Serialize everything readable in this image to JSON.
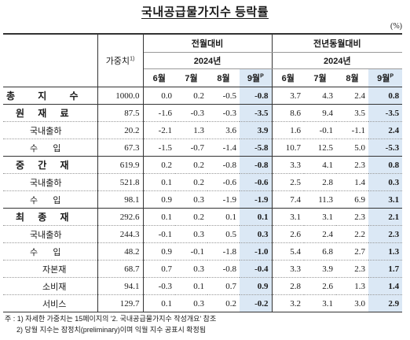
{
  "title": "국내공급물가지수 등락률",
  "unit": "(%)",
  "headers": {
    "weight": "가중치",
    "weight_sup": "1)",
    "mom": "전월대비",
    "yoy": "전년동월대비",
    "year": "2024년",
    "months": [
      "6월",
      "7월",
      "8월",
      "9월"
    ],
    "last_sup": "P"
  },
  "rows": [
    {
      "label": "총지수",
      "level": 0,
      "weight": "1000.0",
      "mom": [
        "0.0",
        "0.2",
        "-0.5",
        "-0.8"
      ],
      "yoy": [
        "3.7",
        "4.3",
        "2.4",
        "0.8"
      ],
      "line": "bold"
    },
    {
      "label": "원재료",
      "level": 1,
      "weight": "87.5",
      "mom": [
        "-1.6",
        "-0.3",
        "-0.3",
        "-3.5"
      ],
      "yoy": [
        "8.6",
        "9.4",
        "3.5",
        "-3.5"
      ],
      "line": "thin"
    },
    {
      "label": "국내출하",
      "level": 2,
      "weight": "20.2",
      "mom": [
        "-2.1",
        "1.3",
        "3.6",
        "3.9"
      ],
      "yoy": [
        "1.6",
        "-0.1",
        "-1.1",
        "2.4"
      ],
      "line": "thin"
    },
    {
      "label": "수입",
      "level": 2,
      "weight": "67.3",
      "mom": [
        "-1.5",
        "-0.7",
        "-1.4",
        "-5.8"
      ],
      "yoy": [
        "10.7",
        "12.5",
        "5.0",
        "-5.3"
      ],
      "line": "bold"
    },
    {
      "label": "중간재",
      "level": 1,
      "weight": "619.9",
      "mom": [
        "0.2",
        "0.2",
        "-0.8",
        "-0.8"
      ],
      "yoy": [
        "3.3",
        "4.1",
        "2.3",
        "0.8"
      ],
      "line": "thin"
    },
    {
      "label": "국내출하",
      "level": 2,
      "weight": "521.8",
      "mom": [
        "0.1",
        "0.2",
        "-0.6",
        "-0.6"
      ],
      "yoy": [
        "2.5",
        "2.8",
        "1.4",
        "0.3"
      ],
      "line": "thin"
    },
    {
      "label": "수입",
      "level": 2,
      "weight": "98.1",
      "mom": [
        "0.9",
        "0.3",
        "-1.9",
        "-1.9"
      ],
      "yoy": [
        "7.4",
        "11.3",
        "6.9",
        "3.1"
      ],
      "line": "bold"
    },
    {
      "label": "최종재",
      "level": 1,
      "weight": "292.6",
      "mom": [
        "0.1",
        "0.2",
        "0.1",
        "0.1"
      ],
      "yoy": [
        "3.1",
        "3.1",
        "2.3",
        "2.1"
      ],
      "line": "thin"
    },
    {
      "label": "국내출하",
      "level": 2,
      "weight": "244.3",
      "mom": [
        "-0.1",
        "0.3",
        "0.5",
        "0.3"
      ],
      "yoy": [
        "2.6",
        "2.4",
        "2.2",
        "2.3"
      ],
      "line": "thin"
    },
    {
      "label": "수입",
      "level": 2,
      "weight": "48.2",
      "mom": [
        "0.9",
        "-0.1",
        "-1.8",
        "-1.0"
      ],
      "yoy": [
        "5.4",
        "6.8",
        "2.7",
        "1.3"
      ],
      "line": "thin"
    },
    {
      "label": "자본재",
      "level": 3,
      "weight": "68.7",
      "mom": [
        "0.7",
        "0.3",
        "-0.8",
        "-0.4"
      ],
      "yoy": [
        "3.3",
        "3.9",
        "2.3",
        "1.7"
      ],
      "line": "thin"
    },
    {
      "label": "소비재",
      "level": 3,
      "weight": "94.1",
      "mom": [
        "-0.3",
        "0.1",
        "0.7",
        "0.9"
      ],
      "yoy": [
        "2.8",
        "2.6",
        "1.3",
        "1.4"
      ],
      "line": "thin"
    },
    {
      "label": "서비스",
      "level": 3,
      "weight": "129.7",
      "mom": [
        "0.1",
        "0.3",
        "0.2",
        "-0.2"
      ],
      "yoy": [
        "3.2",
        "3.1",
        "3.0",
        "2.9"
      ],
      "line": "bold"
    }
  ],
  "notes": [
    "주 : 1) 자세한 가중치는 15페이지의 '2. 국내공급물가지수 작성개요' 참조",
    "2) 당월 지수는 잠정치(preliminary)이며 익월 지수 공표시 확정됨"
  ]
}
